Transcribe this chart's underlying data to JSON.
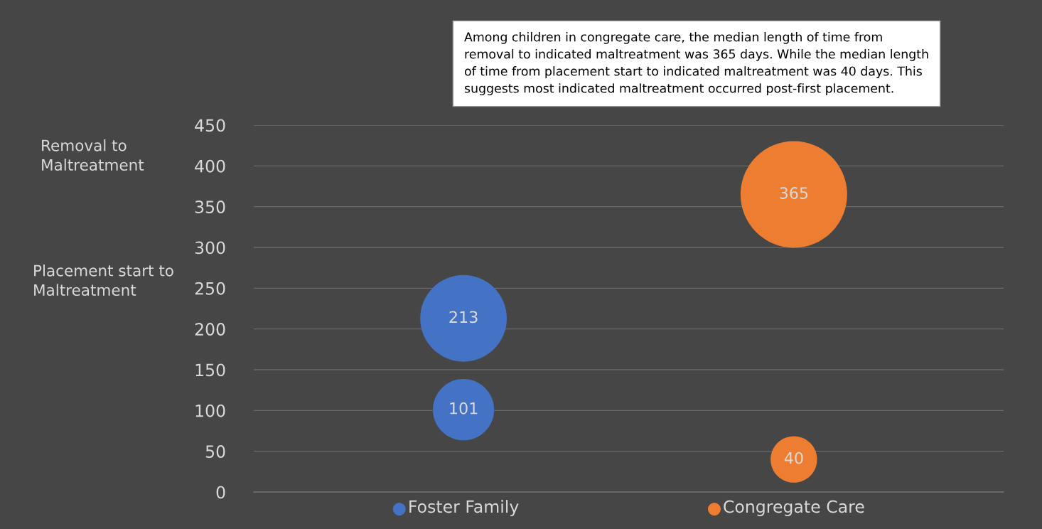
{
  "chart_data": {
    "type": "bubble",
    "categories": [
      "Foster Family",
      "Congregate Care"
    ],
    "series": [
      {
        "colors": [
          "#4472c4",
          "#ed7d31"
        ],
        "values": [
          213,
          365
        ],
        "sizes": [
          0.66,
          1
        ]
      },
      {
        "colors": [
          "#4472c4",
          "#ed7d31"
        ],
        "values": [
          101,
          40
        ],
        "sizes": [
          0.33,
          0.19
        ]
      }
    ],
    "ylim": [
      0,
      450
    ],
    "yticks": [
      0,
      50,
      100,
      150,
      200,
      250,
      300,
      350,
      400,
      450
    ],
    "grid": "y",
    "data_labels": true,
    "annotations": [
      "Removal to\nMaltreatment",
      "Placement start to\nMaltreatment",
      "Among children in congregate care, the median length of time from\nremoval to indicated maltreatment was 365 days. While the median length\nof time from placement start to indicated maltreatment was 40 days. This\nsuggests most indicated maltreatment occurred post-first placement."
    ]
  }
}
